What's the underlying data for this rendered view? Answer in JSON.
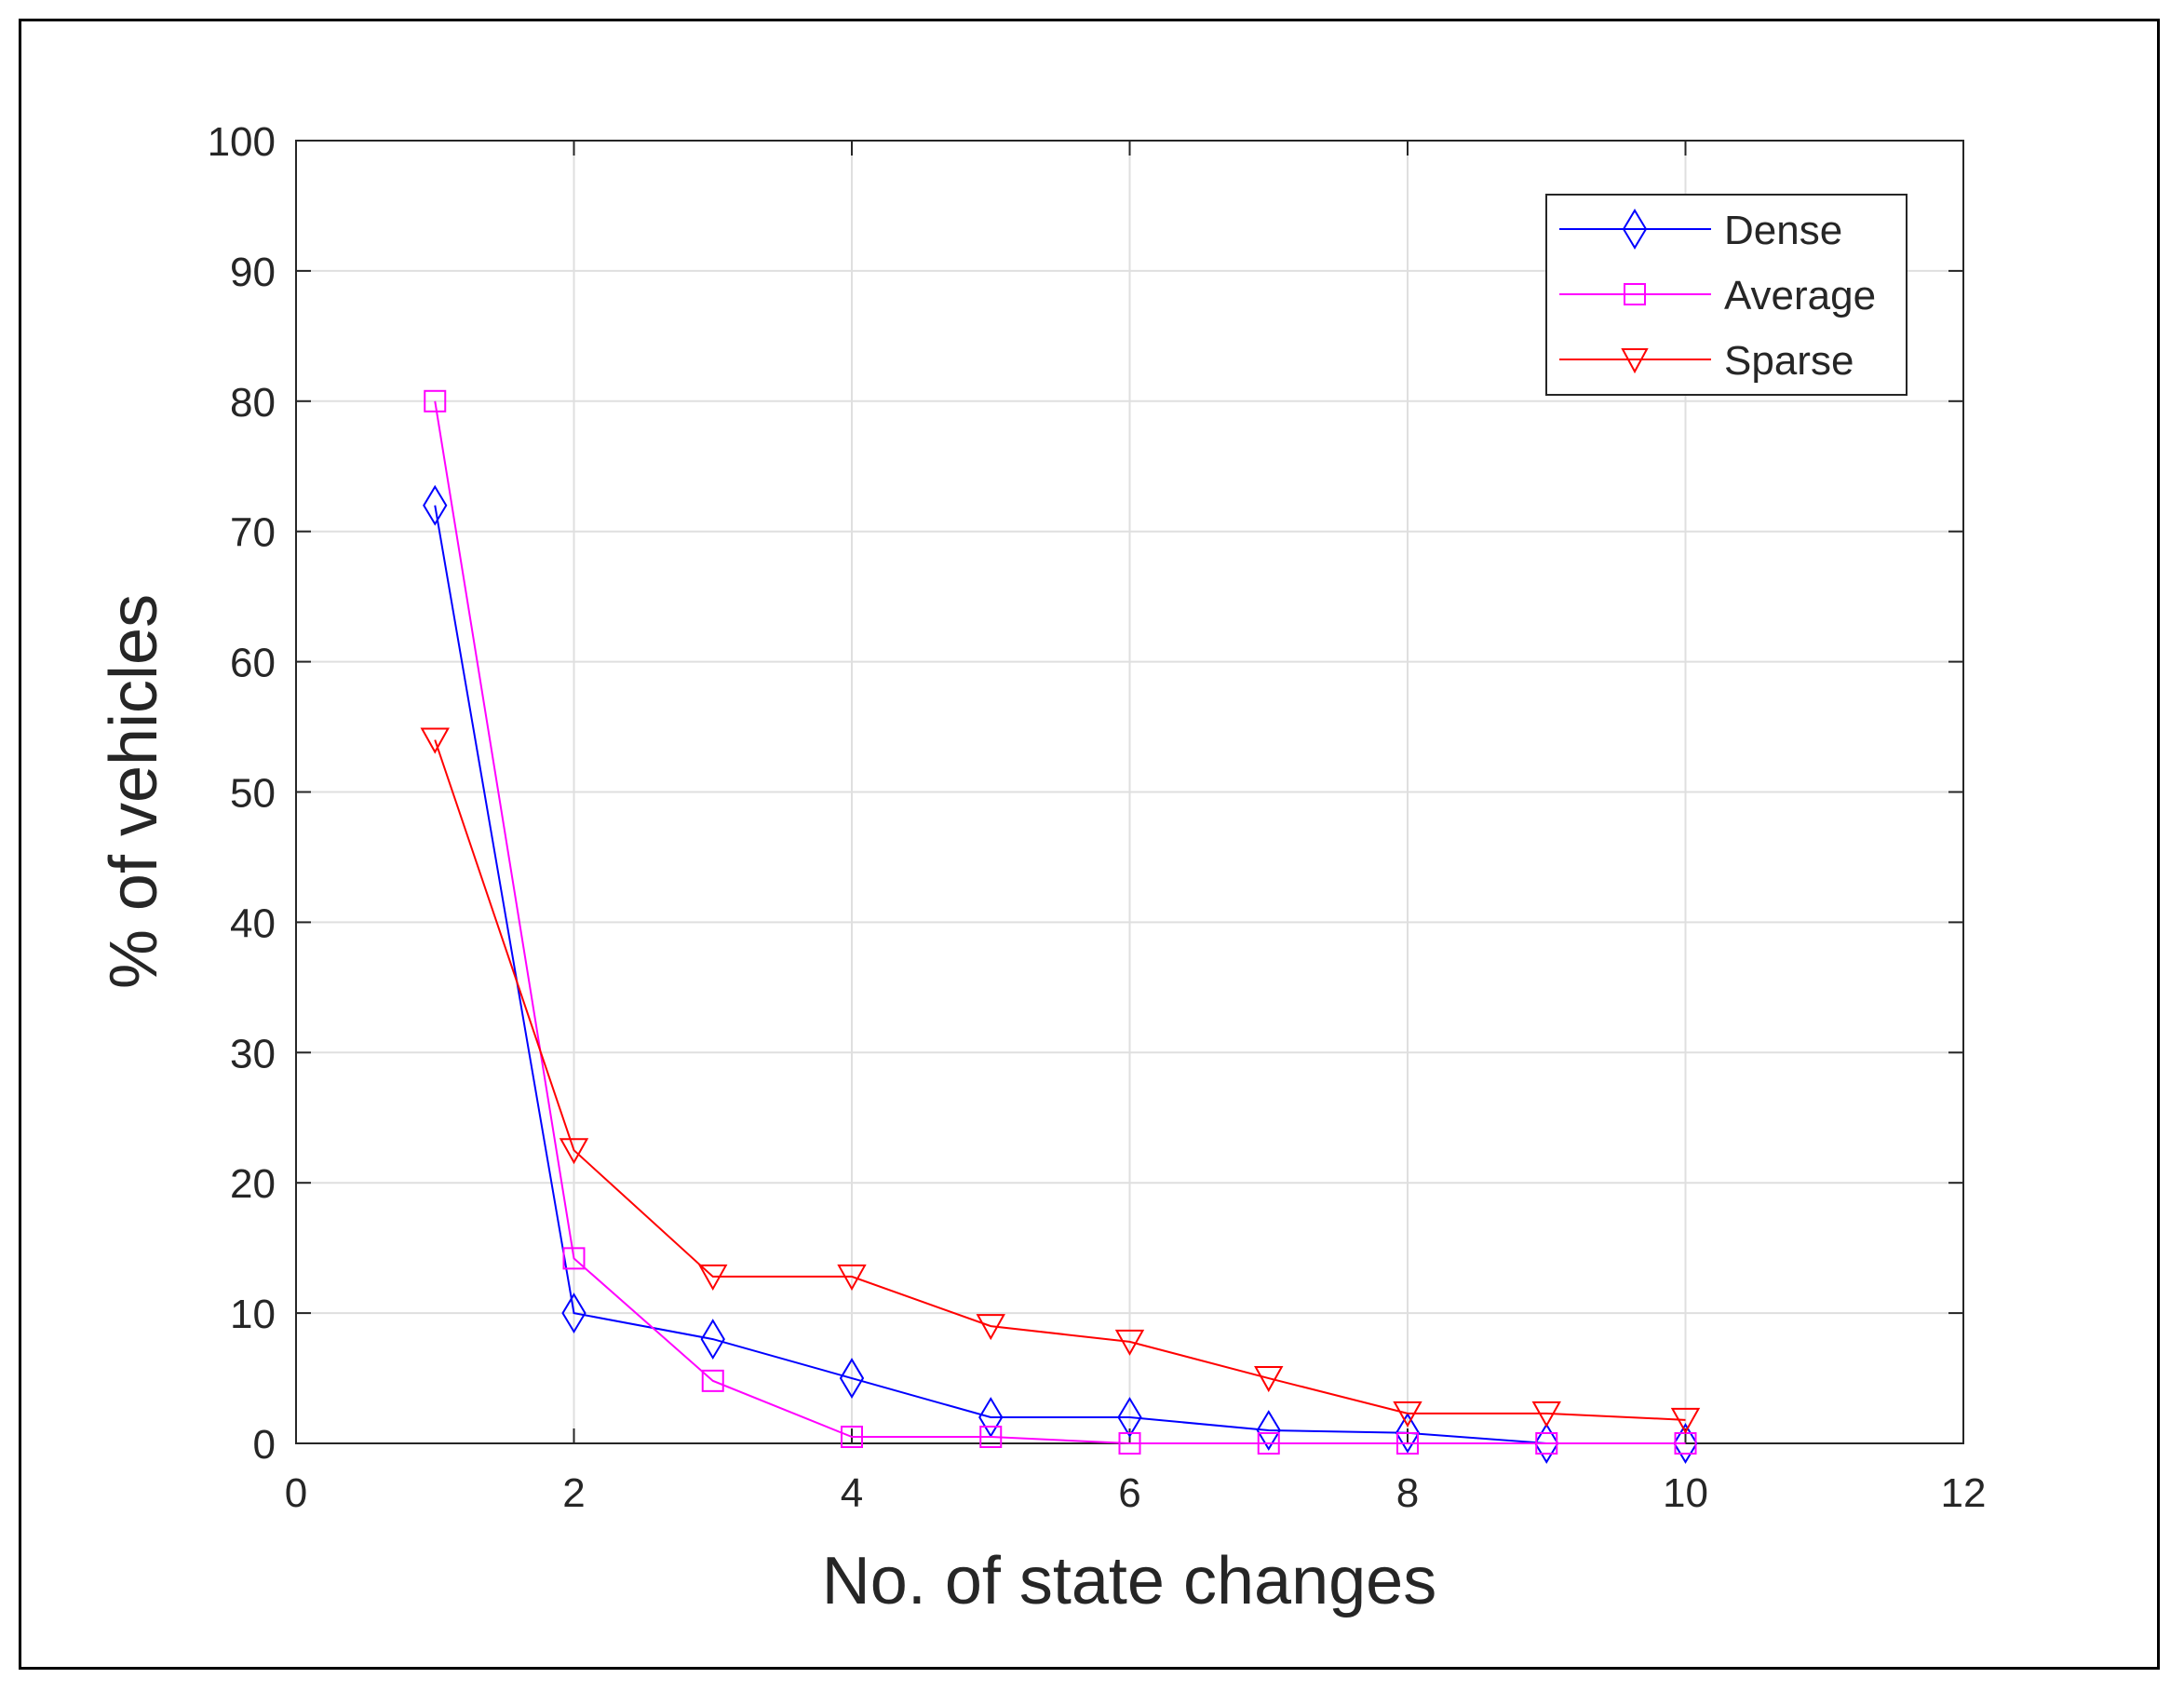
{
  "chart_data": {
    "type": "line",
    "title": "",
    "xlabel": "No. of state changes",
    "ylabel": "% of vehicles",
    "xlim": [
      0,
      12
    ],
    "ylim": [
      0,
      100
    ],
    "xticks": [
      0,
      2,
      4,
      6,
      8,
      10,
      12
    ],
    "yticks": [
      0,
      10,
      20,
      30,
      40,
      50,
      60,
      70,
      80,
      90,
      100
    ],
    "grid": true,
    "legend_position": "top-right",
    "series": [
      {
        "name": "Dense",
        "color": "#0000ff",
        "marker": "diamond",
        "x": [
          1,
          2,
          3,
          4,
          5,
          6,
          7,
          8,
          9,
          10
        ],
        "values": [
          72,
          10,
          8,
          5,
          2,
          2,
          1,
          0.8,
          0,
          0
        ]
      },
      {
        "name": "Average",
        "color": "#ff00ff",
        "marker": "square",
        "x": [
          1,
          2,
          3,
          4,
          5,
          6,
          7,
          8,
          9,
          10
        ],
        "values": [
          80,
          14.2,
          4.8,
          0.5,
          0.5,
          0,
          0,
          0,
          0,
          0
        ]
      },
      {
        "name": "Sparse",
        "color": "#ff0000",
        "marker": "triangle-down",
        "x": [
          1,
          2,
          3,
          4,
          5,
          6,
          7,
          8,
          9,
          10
        ],
        "values": [
          54,
          22.5,
          12.8,
          12.8,
          9,
          7.8,
          5,
          2.3,
          2.3,
          1.8
        ]
      }
    ]
  }
}
